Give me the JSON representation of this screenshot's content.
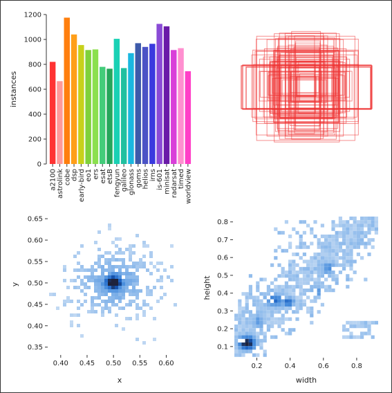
{
  "chart_data": [
    {
      "type": "bar",
      "ylabel": "instances",
      "xlabel": "",
      "ylim": [
        0,
        1200
      ],
      "yticks": [
        0,
        200,
        400,
        600,
        800,
        1000,
        1200
      ],
      "categories": [
        "a2100",
        "astrolink",
        "cobe",
        "dsp",
        "early-bird",
        "eo1",
        "ers",
        "esat",
        "etsB",
        "fengyun",
        "galileo",
        "glonass",
        "goms",
        "helios",
        "irns",
        "is-601",
        "minisat",
        "radarsat",
        "timed",
        "worldview"
      ],
      "values": [
        820,
        665,
        1175,
        1040,
        955,
        915,
        920,
        780,
        765,
        1005,
        770,
        890,
        970,
        940,
        965,
        1125,
        1105,
        915,
        930,
        745
      ],
      "colors": [
        "#ff3333",
        "#ff9999",
        "#ff7f0e",
        "#ff9f1a",
        "#c7d11b",
        "#7fd13b",
        "#8be04e",
        "#43cc7a",
        "#26a65b",
        "#1ad1b5",
        "#20c0a0",
        "#1ab8e0",
        "#3d5aaa",
        "#4b53c6",
        "#3a3adf",
        "#8a4bd6",
        "#6a1aa8",
        "#d93fd9",
        "#ff8fd0",
        "#ff3fc7"
      ]
    },
    {
      "type": "box-overlay",
      "color": "#ee3333"
    },
    {
      "type": "heatmap",
      "xlabel": "x",
      "ylabel": "y",
      "xticks": [
        0.4,
        0.45,
        0.5,
        0.55,
        0.6
      ],
      "yticks": [
        0.35,
        0.4,
        0.45,
        0.5,
        0.55,
        0.6,
        0.65
      ],
      "xlim": [
        0.378,
        0.64
      ],
      "ylim": [
        0.335,
        0.655
      ]
    },
    {
      "type": "heatmap",
      "xlabel": "width",
      "ylabel": "height",
      "xticks": [
        0.2,
        0.4,
        0.6,
        0.8
      ],
      "yticks": [
        0.1,
        0.2,
        0.3,
        0.4,
        0.5,
        0.6,
        0.7,
        0.8
      ],
      "xlim": [
        0.065,
        0.925
      ],
      "ylim": [
        0.045,
        0.83
      ]
    }
  ]
}
